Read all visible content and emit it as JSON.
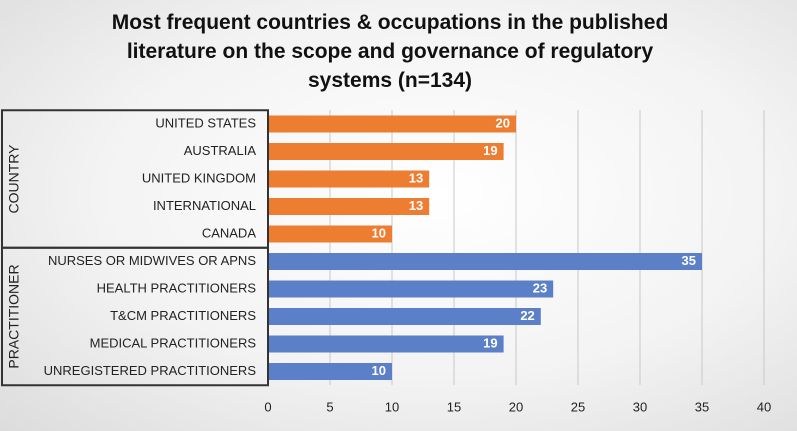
{
  "chart_data": {
    "type": "bar",
    "orientation": "horizontal",
    "title": "Most frequent countries & occupations in the published literature on the scope and governance of regulatory systems  (n=134)",
    "groups": [
      {
        "name": "COUNTRY",
        "color": "#ed7d31",
        "categories": [
          "UNITED STATES",
          "AUSTRALIA",
          "UNITED KINGDOM",
          "INTERNATIONAL",
          "CANADA"
        ],
        "values": [
          20,
          19,
          13,
          13,
          10
        ]
      },
      {
        "name": "PRACTITIONER",
        "color": "#5b80c8",
        "categories": [
          "NURSES OR MIDWIVES OR APNS",
          "HEALTH PRACTITIONERS",
          "T&CM PRACTITIONERS",
          "MEDICAL PRACTITIONERS",
          "UNREGISTERED PRACTITIONERS"
        ],
        "values": [
          35,
          23,
          22,
          19,
          10
        ]
      }
    ],
    "xlim": [
      0,
      40
    ],
    "xticks": [
      0,
      5,
      10,
      15,
      20,
      25,
      30,
      35,
      40
    ],
    "grid": true
  }
}
